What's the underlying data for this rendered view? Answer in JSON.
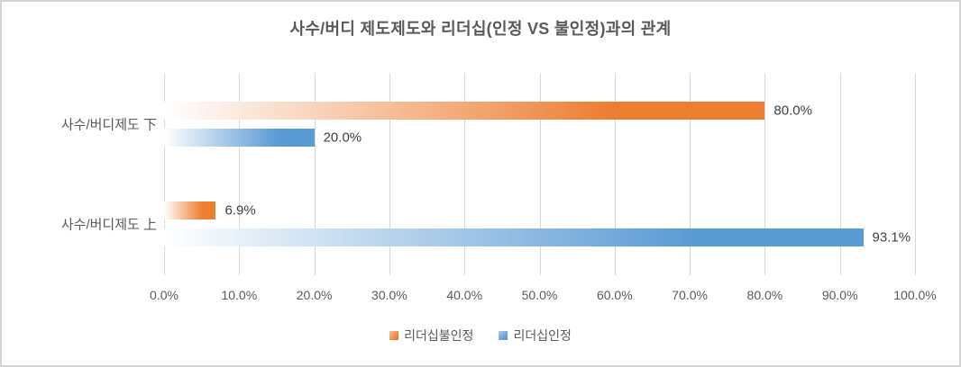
{
  "window": {
    "background": "#FFFFFF",
    "border_color": "#D4D4D4"
  },
  "chart_data": {
    "type": "bar",
    "orientation": "horizontal",
    "title": "사수/버디 제도제도와 리더십(인정 VS 불인정)과의 관계",
    "categories": [
      "사수/버디제도 下",
      "사수/버디제도 上"
    ],
    "series": [
      {
        "name": "리더십불인정",
        "color": "#ED7D31",
        "values": [
          80.0,
          6.9
        ],
        "data_labels": [
          "80.0%",
          "6.9%"
        ]
      },
      {
        "name": "리더십인정",
        "color": "#5B9BD5",
        "values": [
          20.0,
          93.1
        ],
        "data_labels": [
          "20.0%",
          "93.1%"
        ]
      }
    ],
    "x_axis": {
      "min": 0,
      "max": 100,
      "tick_labels": [
        "0.0%",
        "10.0%",
        "20.0%",
        "30.0%",
        "40.0%",
        "50.0%",
        "60.0%",
        "70.0%",
        "80.0%",
        "90.0%",
        "100.0%"
      ]
    },
    "grid": true,
    "legend_position": "bottom",
    "bar_fill_style": "gradient-white-to-color",
    "colors": {
      "grid_line": "#D9D9D9",
      "axis_text": "#595959",
      "title_text": "#595959",
      "data_label_text": "#404040"
    }
  }
}
